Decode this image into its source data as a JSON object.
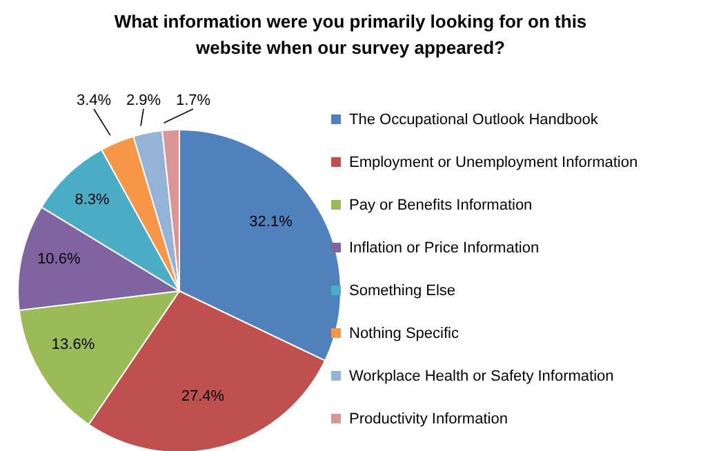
{
  "chart_data": {
    "type": "pie",
    "title": "What information were you primarily looking for on this\nwebsite when our survey appeared?",
    "categories": [
      "The Occupational Outlook Handbook",
      "Employment or Unemployment Information",
      "Pay or Benefits Information",
      "Inflation or Price Information",
      "Something Else",
      "Nothing Specific",
      "Workplace Health or Safety Information",
      "Productivity Information"
    ],
    "values": [
      32.1,
      27.4,
      13.6,
      10.6,
      8.3,
      3.4,
      2.9,
      1.7
    ],
    "value_labels": [
      "32.1%",
      "27.4%",
      "13.6%",
      "10.6%",
      "8.3%",
      "3.4%",
      "2.9%",
      "1.7%"
    ],
    "colors": [
      "#4f81bd",
      "#c0504d",
      "#9bbb59",
      "#8064a2",
      "#4bacc6",
      "#f79646",
      "#95b3d7",
      "#d99694"
    ],
    "legend": "right"
  }
}
